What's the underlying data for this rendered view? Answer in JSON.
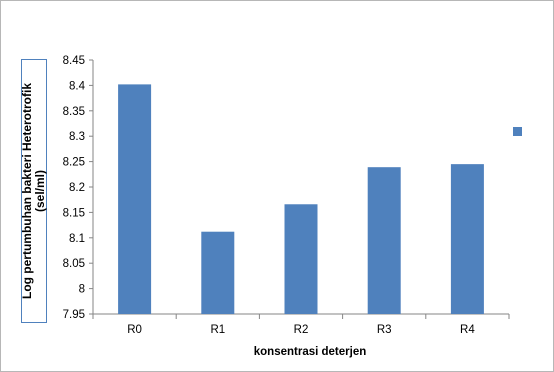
{
  "chart_data": {
    "type": "bar",
    "categories": [
      "R0",
      "R1",
      "R2",
      "R3",
      "R4"
    ],
    "values": [
      8.402,
      8.112,
      8.166,
      8.239,
      8.245
    ],
    "ylim": [
      7.95,
      8.45
    ],
    "yticks": [
      "7.95",
      "8",
      "8.05",
      "8.1",
      "8.15",
      "8.2",
      "8.25",
      "8.3",
      "8.35",
      "8.4",
      "8.45"
    ],
    "ylabel_lines": [
      "Log pertumbuhan bakteri Heterotrofik",
      "(sel/ml)"
    ],
    "xlabel": "konsentrasi deterjen",
    "grid": false,
    "legend": "right",
    "bar_color": "#4f81bd"
  }
}
